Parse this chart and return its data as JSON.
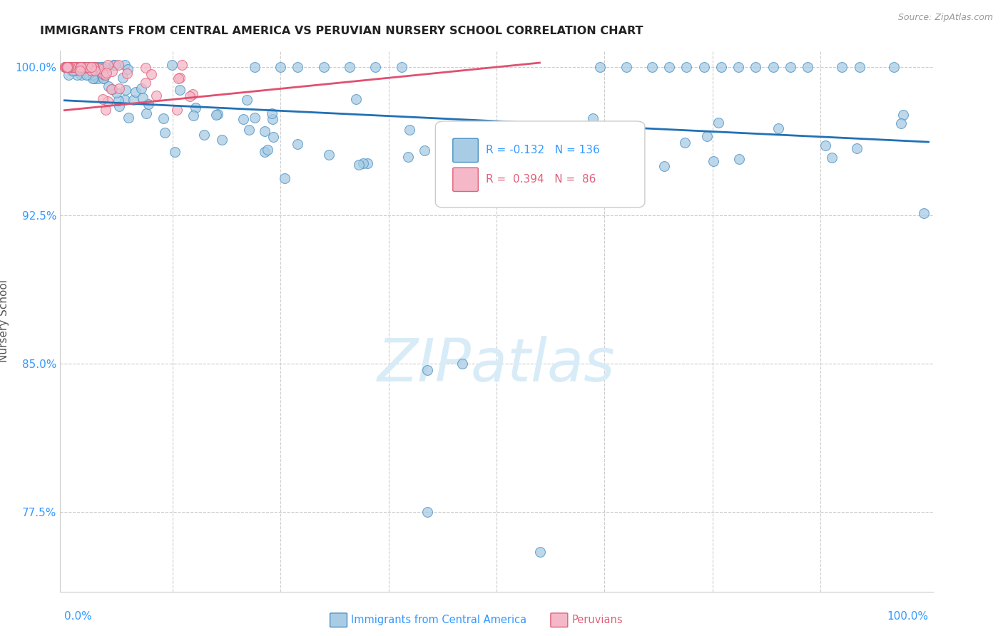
{
  "title": "IMMIGRANTS FROM CENTRAL AMERICA VS PERUVIAN NURSERY SCHOOL CORRELATION CHART",
  "source": "Source: ZipAtlas.com",
  "ylabel": "Nursery School",
  "legend_label1": "Immigrants from Central America",
  "legend_label2": "Peruvians",
  "R1": -0.132,
  "N1": 136,
  "R2": 0.394,
  "N2": 86,
  "blue_face": "#a8cce4",
  "blue_edge": "#4a90c4",
  "pink_face": "#f4b8c8",
  "pink_edge": "#e0607a",
  "blue_line": "#2171b5",
  "pink_line": "#e05070",
  "grid_color": "#cccccc",
  "tick_color": "#3399ff",
  "ylabel_color": "#555555",
  "title_color": "#222222",
  "source_color": "#999999",
  "watermark_color": "#d8ecf8",
  "background": "#ffffff",
  "ylim_min": 0.735,
  "ylim_max": 1.008,
  "xlim_min": -0.005,
  "xlim_max": 1.005,
  "ytick_vals": [
    1.0,
    0.925,
    0.85,
    0.775
  ],
  "ytick_labels": [
    "100.0%",
    "92.5%",
    "85.0%",
    "77.5%"
  ],
  "xgrid_vals": [
    0.125,
    0.25,
    0.375,
    0.5,
    0.625,
    0.75,
    0.875
  ],
  "blue_line_x0": 0.0,
  "blue_line_x1": 1.0,
  "blue_line_y0": 0.983,
  "blue_line_y1": 0.962,
  "pink_line_x0": 0.0,
  "pink_line_x1": 0.55,
  "pink_line_y0": 0.978,
  "pink_line_y1": 1.002,
  "marker_size": 100,
  "marker_lw": 0.8,
  "marker_alpha": 0.75
}
